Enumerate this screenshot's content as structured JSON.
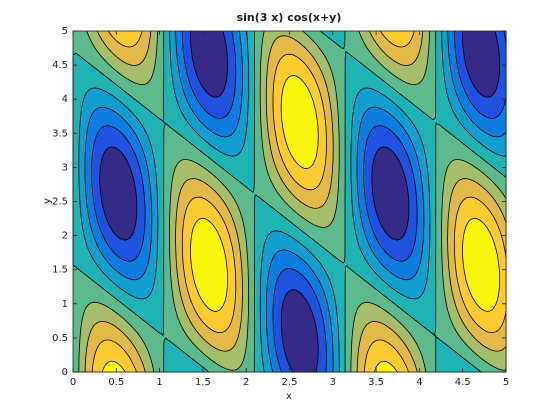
{
  "chart_data": {
    "type": "contourf",
    "title": "sin(3 x) cos(x+y)",
    "x_label": "x",
    "y_label": "y",
    "xlim": [
      0,
      5
    ],
    "ylim": [
      0,
      5
    ],
    "xticks": [
      0,
      0.5,
      1,
      1.5,
      2,
      2.5,
      3,
      3.5,
      4,
      4.5,
      5
    ],
    "yticks": [
      0,
      0.5,
      1,
      1.5,
      2,
      2.5,
      3,
      3.5,
      4,
      4.5,
      5
    ],
    "levels": [
      -0.8,
      -0.6,
      -0.4,
      -0.2,
      0,
      0.2,
      0.4,
      0.6,
      0.8
    ],
    "colors": [
      "#352a87",
      "#1f52df",
      "#0d7de0",
      "#129fd0",
      "#1fb3b4",
      "#5cba8c",
      "#a6bd69",
      "#e3b94a",
      "#fccb2f",
      "#f9f50f"
    ],
    "line_color": "#000000"
  }
}
